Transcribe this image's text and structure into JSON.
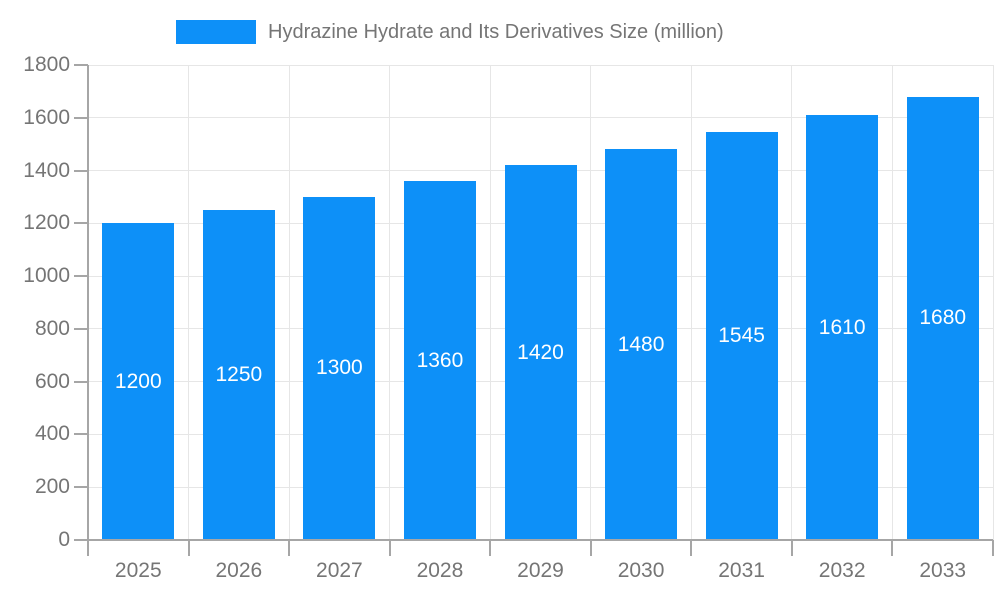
{
  "legend": {
    "label": "Hydrazine Hydrate and Its Derivatives Size (million)"
  },
  "chart_data": {
    "type": "bar",
    "title": "Hydrazine Hydrate and Its Derivatives Size (million)",
    "categories": [
      "2025",
      "2026",
      "2027",
      "2028",
      "2029",
      "2030",
      "2031",
      "2032",
      "2033"
    ],
    "values": [
      1200,
      1250,
      1300,
      1360,
      1420,
      1480,
      1545,
      1610,
      1680
    ],
    "xlabel": "",
    "ylabel": "",
    "ylim": [
      0,
      1800
    ],
    "ytick_step": 200,
    "yticks": [
      0,
      200,
      400,
      600,
      800,
      1000,
      1200,
      1400,
      1600,
      1800
    ],
    "grid": true,
    "legend_position": "top",
    "bar_value_labels_inside": true,
    "colors": {
      "bar": "#0d90f8",
      "bar_label": "#ffffff",
      "grid": "#e6e6e6",
      "axis": "#a6a6a6",
      "text": "#757575"
    }
  }
}
